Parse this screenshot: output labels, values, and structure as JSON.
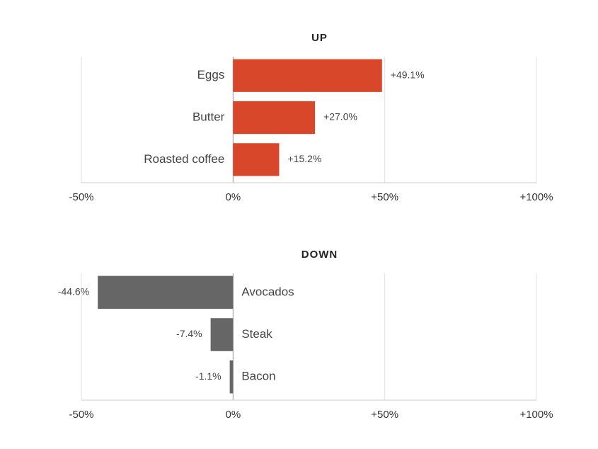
{
  "chart_data": [
    {
      "type": "bar",
      "orientation": "horizontal",
      "title": "UP",
      "categories": [
        "Eggs",
        "Butter",
        "Roasted coffee"
      ],
      "values": [
        49.1,
        27.0,
        15.2
      ],
      "value_labels": [
        "+49.1%",
        "+27.0%",
        "+15.2%"
      ],
      "color": "#d9472b",
      "xlim": [
        -50,
        100
      ],
      "xticks": [
        {
          "value": -50,
          "label": "-50%"
        },
        {
          "value": 0,
          "label": "0%"
        },
        {
          "value": 50,
          "label": "+50%"
        },
        {
          "value": 100,
          "label": "+100%"
        }
      ],
      "grid": true
    },
    {
      "type": "bar",
      "orientation": "horizontal",
      "title": "DOWN",
      "categories": [
        "Avocados",
        "Steak",
        "Bacon"
      ],
      "values": [
        -44.6,
        -7.4,
        -1.1
      ],
      "value_labels": [
        "-44.6%",
        "-7.4%",
        "-1.1%"
      ],
      "color": "#666666",
      "xlim": [
        -50,
        100
      ],
      "xticks": [
        {
          "value": -50,
          "label": "-50%"
        },
        {
          "value": 0,
          "label": "0%"
        },
        {
          "value": 50,
          "label": "+50%"
        },
        {
          "value": 100,
          "label": "+100%"
        }
      ],
      "grid": true
    }
  ]
}
